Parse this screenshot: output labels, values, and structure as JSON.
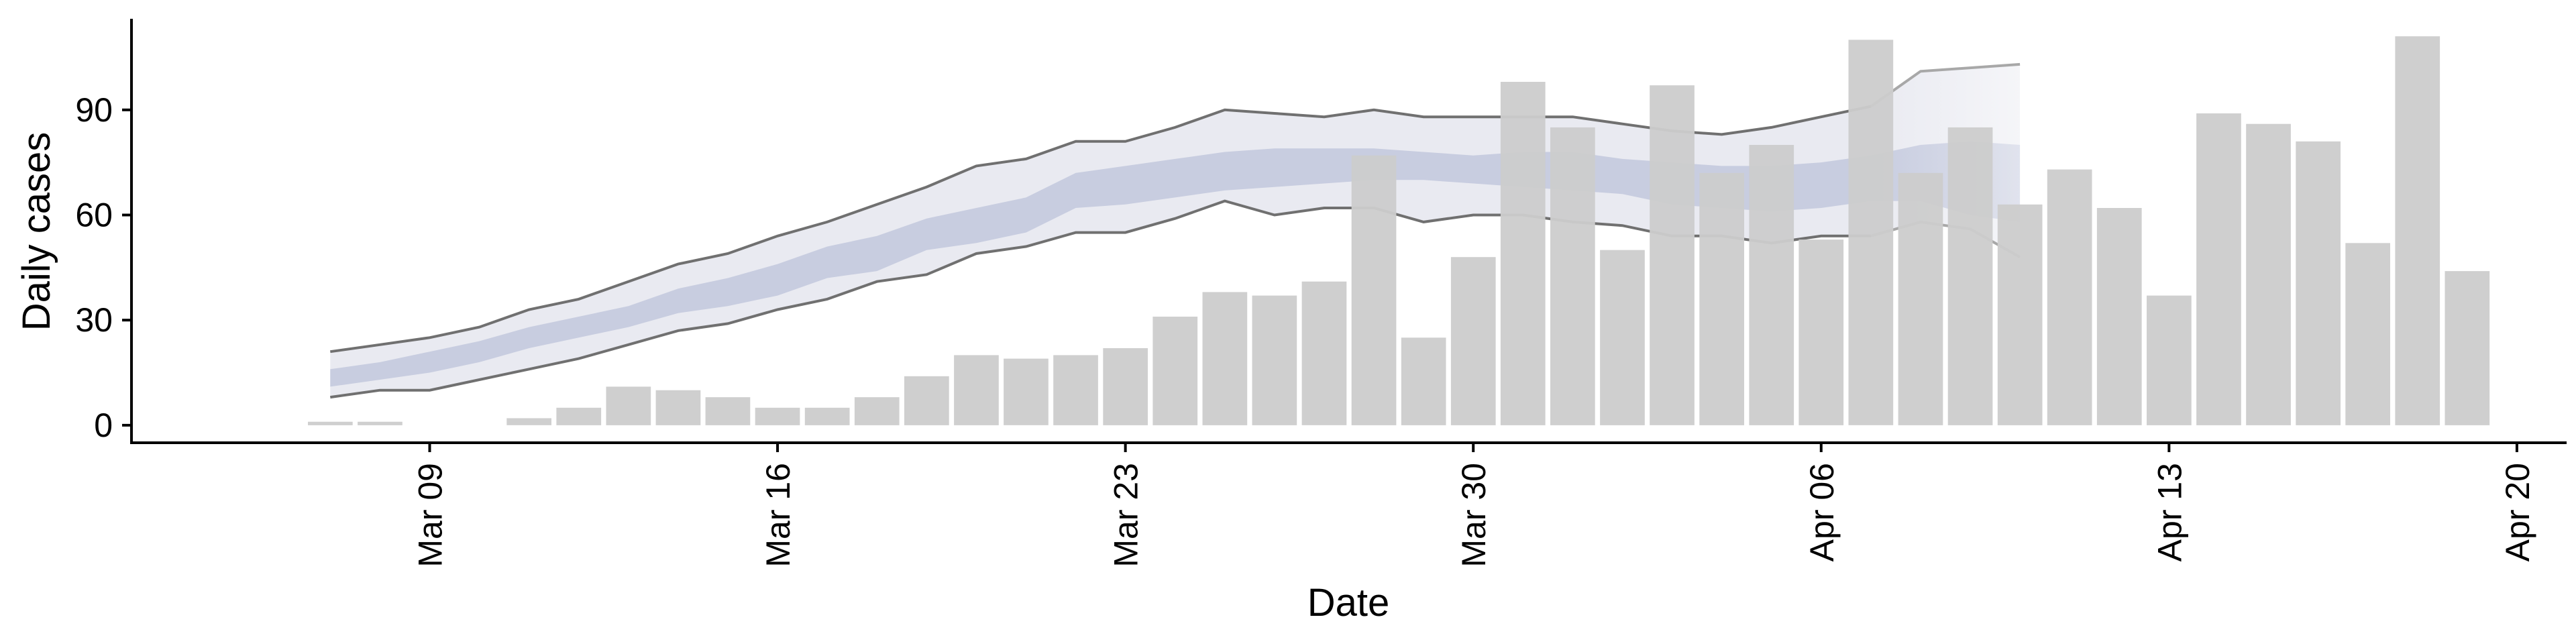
{
  "chart_data": {
    "type": "bar",
    "title": "",
    "xlabel": "Date",
    "ylabel": "Daily cases",
    "ylim": [
      -5,
      116
    ],
    "yticks": [
      0,
      30,
      60,
      90
    ],
    "xlim": [
      "2020-03-03",
      "2020-04-21"
    ],
    "xticks": [
      {
        "date": "2020-03-09",
        "label": "Mar 09"
      },
      {
        "date": "2020-03-16",
        "label": "Mar 16"
      },
      {
        "date": "2020-03-23",
        "label": "Mar 23"
      },
      {
        "date": "2020-03-30",
        "label": "Mar 30"
      },
      {
        "date": "2020-04-06",
        "label": "Apr 06"
      },
      {
        "date": "2020-04-13",
        "label": "Apr 13"
      },
      {
        "date": "2020-04-20",
        "label": "Apr 20"
      }
    ],
    "grid": false,
    "legend": "none",
    "series": [
      {
        "type": "bar",
        "color": "#cccccc",
        "x": [
          "2020-03-07",
          "2020-03-08",
          "2020-03-09",
          "2020-03-10",
          "2020-03-11",
          "2020-03-12",
          "2020-03-13",
          "2020-03-14",
          "2020-03-15",
          "2020-03-16",
          "2020-03-17",
          "2020-03-18",
          "2020-03-19",
          "2020-03-20",
          "2020-03-21",
          "2020-03-22",
          "2020-03-23",
          "2020-03-24",
          "2020-03-25",
          "2020-03-26",
          "2020-03-27",
          "2020-03-28",
          "2020-03-29",
          "2020-03-30",
          "2020-03-31",
          "2020-04-01",
          "2020-04-02",
          "2020-04-03",
          "2020-04-04",
          "2020-04-05",
          "2020-04-06",
          "2020-04-07",
          "2020-04-08",
          "2020-04-09",
          "2020-04-10",
          "2020-04-11",
          "2020-04-12",
          "2020-04-13",
          "2020-04-14",
          "2020-04-15",
          "2020-04-16",
          "2020-04-17",
          "2020-04-18",
          "2020-04-19"
        ],
        "values": [
          1,
          1,
          0,
          0,
          2,
          5,
          11,
          10,
          8,
          5,
          5,
          8,
          14,
          20,
          19,
          20,
          22,
          31,
          38,
          37,
          41,
          77,
          25,
          48,
          98,
          85,
          50,
          97,
          72,
          80,
          53,
          110,
          72,
          85,
          63,
          73,
          62,
          37,
          89,
          86,
          81,
          52,
          111,
          44
        ]
      },
      {
        "type": "ribbon",
        "role": "outer-interval",
        "color": "#e9eaf1",
        "x": [
          "2020-03-07",
          "2020-03-08",
          "2020-03-09",
          "2020-03-10",
          "2020-03-11",
          "2020-03-12",
          "2020-03-13",
          "2020-03-14",
          "2020-03-15",
          "2020-03-16",
          "2020-03-17",
          "2020-03-18",
          "2020-03-19",
          "2020-03-20",
          "2020-03-21",
          "2020-03-22",
          "2020-03-23",
          "2020-03-24",
          "2020-03-25",
          "2020-03-26",
          "2020-03-27",
          "2020-03-28",
          "2020-03-29",
          "2020-03-30",
          "2020-03-31",
          "2020-04-01",
          "2020-04-02",
          "2020-04-03",
          "2020-04-04",
          "2020-04-05",
          "2020-04-06",
          "2020-04-07",
          "2020-04-08",
          "2020-04-09",
          "2020-04-10"
        ],
        "lower": [
          8,
          10,
          10,
          13,
          16,
          19,
          23,
          27,
          29,
          33,
          36,
          41,
          43,
          49,
          51,
          55,
          55,
          59,
          64,
          60,
          62,
          62,
          58,
          60,
          60,
          58,
          57,
          54,
          54,
          52,
          54,
          54,
          58,
          56,
          48
        ],
        "upper": [
          21,
          23,
          25,
          28,
          33,
          36,
          41,
          46,
          49,
          54,
          58,
          63,
          68,
          74,
          76,
          81,
          81,
          85,
          90,
          89,
          88,
          90,
          88,
          88,
          88,
          88,
          86,
          84,
          83,
          85,
          88,
          91,
          101,
          102,
          103
        ]
      },
      {
        "type": "ribbon",
        "role": "inner-interval",
        "color": "#c8cde0",
        "x": [
          "2020-03-07",
          "2020-03-08",
          "2020-03-09",
          "2020-03-10",
          "2020-03-11",
          "2020-03-12",
          "2020-03-13",
          "2020-03-14",
          "2020-03-15",
          "2020-03-16",
          "2020-03-17",
          "2020-03-18",
          "2020-03-19",
          "2020-03-20",
          "2020-03-21",
          "2020-03-22",
          "2020-03-23",
          "2020-03-24",
          "2020-03-25",
          "2020-03-26",
          "2020-03-27",
          "2020-03-28",
          "2020-03-29",
          "2020-03-30",
          "2020-03-31",
          "2020-04-01",
          "2020-04-02",
          "2020-04-03",
          "2020-04-04",
          "2020-04-05",
          "2020-04-06",
          "2020-04-07",
          "2020-04-08",
          "2020-04-09",
          "2020-04-10"
        ],
        "lower": [
          11,
          13,
          15,
          18,
          22,
          25,
          28,
          32,
          34,
          37,
          42,
          44,
          50,
          52,
          55,
          62,
          63,
          65,
          67,
          68,
          69,
          70,
          70,
          69,
          68,
          67,
          66,
          63,
          62,
          61,
          62,
          64,
          64,
          60,
          58
        ],
        "upper": [
          16,
          18,
          21,
          24,
          28,
          31,
          34,
          39,
          42,
          46,
          51,
          54,
          59,
          62,
          65,
          72,
          74,
          76,
          78,
          79,
          79,
          79,
          78,
          77,
          78,
          78,
          76,
          75,
          74,
          74,
          75,
          77,
          80,
          81,
          80
        ]
      }
    ]
  }
}
